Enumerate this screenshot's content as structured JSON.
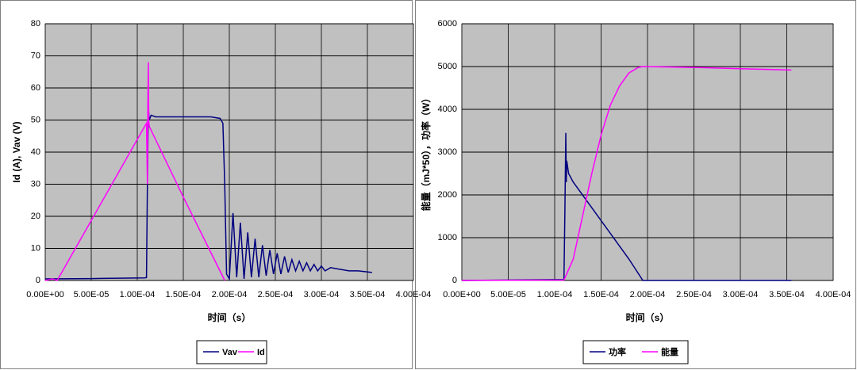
{
  "chart_data": [
    {
      "type": "line",
      "y_label": "Id (A), Vav (V)",
      "x_label": "时间（s）",
      "xlim": [
        0,
        0.0004
      ],
      "ylim": [
        0,
        80
      ],
      "xticks": [
        {
          "value": 0,
          "label": "0.00E+00"
        },
        {
          "value": 5e-05,
          "label": "5.00E-05"
        },
        {
          "value": 0.0001,
          "label": "1.00E-04"
        },
        {
          "value": 0.00015,
          "label": "1.50E-04"
        },
        {
          "value": 0.0002,
          "label": "2.00E-04"
        },
        {
          "value": 0.00025,
          "label": "2.50E-04"
        },
        {
          "value": 0.0003,
          "label": "3.00E-04"
        },
        {
          "value": 0.00035,
          "label": "3.50E-04"
        },
        {
          "value": 0.0004,
          "label": "4.00E-04"
        }
      ],
      "yticks": [
        0,
        10,
        20,
        30,
        40,
        50,
        60,
        70,
        80
      ],
      "grid": true,
      "legend": "bottom",
      "series": [
        {
          "name": "Vav",
          "color": "#000080",
          "x": [
            0,
            5e-05,
            0.000108,
            0.00011,
            0.000111,
            0.000112,
            0.000113,
            0.000115,
            0.00012,
            0.00015,
            0.00018,
            0.00019,
            0.000193,
            0.000195,
            0.000197,
            0.0002,
            0.000204,
            0.000208,
            0.000212,
            0.000216,
            0.00022,
            0.000224,
            0.000228,
            0.000232,
            0.000236,
            0.00024,
            0.000244,
            0.000248,
            0.000252,
            0.000256,
            0.00026,
            0.000264,
            0.000268,
            0.000272,
            0.000276,
            0.00028,
            0.000284,
            0.000288,
            0.000292,
            0.000296,
            0.0003,
            0.000304,
            0.00031,
            0.00032,
            0.00033,
            0.00034,
            0.000355
          ],
          "values": [
            0.5,
            0.6,
            0.8,
            0.9,
            30,
            54,
            50,
            51.5,
            51,
            51,
            51,
            50.5,
            49,
            30,
            2,
            0.5,
            21,
            1,
            18,
            0.5,
            15,
            1,
            13,
            1,
            11,
            1.5,
            9.5,
            2,
            8.5,
            2,
            7.5,
            2.5,
            6.5,
            3,
            6,
            3,
            5.5,
            3,
            5,
            3,
            4.5,
            3,
            4,
            3.5,
            3,
            3,
            2.5
          ]
        },
        {
          "name": "Id",
          "color": "#ff00ff",
          "x": [
            0,
            8e-06,
            1.3e-05,
            0.00011,
            0.000111,
            0.0001115,
            0.000112,
            0.0001125,
            0.000113,
            0.00015,
            0.000195
          ],
          "values": [
            0,
            0.5,
            0,
            49,
            30,
            55,
            68,
            50,
            48,
            26,
            0
          ]
        }
      ]
    },
    {
      "type": "line",
      "y_label": "能量（mJ*50），功率（W）",
      "x_label": "时间（s）",
      "xlim": [
        0,
        0.0004
      ],
      "ylim": [
        0,
        6000
      ],
      "xticks": [
        {
          "value": 0,
          "label": "0.00E+00"
        },
        {
          "value": 5e-05,
          "label": "5.00E-05"
        },
        {
          "value": 0.0001,
          "label": "1.00E-04"
        },
        {
          "value": 0.00015,
          "label": "1.50E-04"
        },
        {
          "value": 0.0002,
          "label": "2.00E-04"
        },
        {
          "value": 0.00025,
          "label": "2.50E-04"
        },
        {
          "value": 0.0003,
          "label": "3.00E-04"
        },
        {
          "value": 0.00035,
          "label": "3.50E-04"
        },
        {
          "value": 0.0004,
          "label": "4.00E-04"
        }
      ],
      "yticks": [
        0,
        1000,
        2000,
        3000,
        4000,
        5000,
        6000
      ],
      "grid": true,
      "legend": "bottom",
      "series": [
        {
          "name": "功率",
          "color": "#000080",
          "x": [
            0,
            0.00011,
            0.000111,
            0.000112,
            0.0001125,
            0.000113,
            0.000115,
            0.00012,
            0.00015,
            0.00018,
            0.000195,
            0.000355
          ],
          "values": [
            0,
            20,
            1600,
            3450,
            2300,
            2800,
            2500,
            2300,
            1400,
            500,
            0,
            0
          ]
        },
        {
          "name": "能量",
          "color": "#ff00ff",
          "x": [
            0,
            0.00011,
            0.00012,
            0.00013,
            0.00014,
            0.00015,
            0.00016,
            0.00017,
            0.00018,
            0.00019,
            0.000195,
            0.00025,
            0.0003,
            0.000355
          ],
          "values": [
            0,
            10,
            500,
            1500,
            2500,
            3400,
            4100,
            4550,
            4850,
            4980,
            5000,
            4980,
            4950,
            4920
          ]
        }
      ]
    }
  ]
}
